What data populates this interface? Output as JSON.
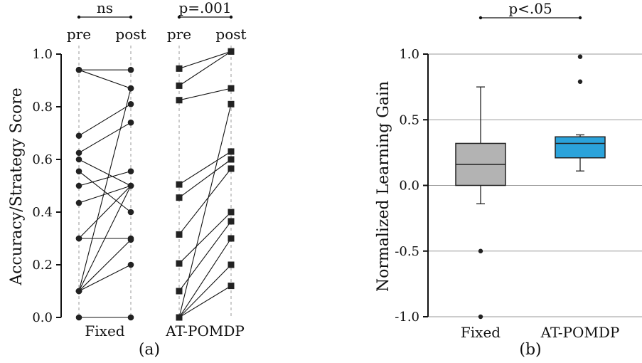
{
  "chart_data": [
    {
      "type": "scatter",
      "panel_label": "(a)",
      "ylabel": "Accuracy/Strategy Score",
      "ylim": [
        0,
        1
      ],
      "yticks": [
        "0.0",
        "0.2",
        "0.4",
        "0.6",
        "0.8",
        "1.0"
      ],
      "x_tick_labels": [
        "pre",
        "post"
      ],
      "groups": [
        {
          "name": "Fixed",
          "significance": "ns",
          "marker": "circle",
          "pairs": [
            [
              0.94,
              0.94
            ],
            [
              0.94,
              0.87
            ],
            [
              0.69,
              0.81
            ],
            [
              0.625,
              0.74
            ],
            [
              0.6,
              0.5
            ],
            [
              0.555,
              0.4
            ],
            [
              0.5,
              0.555
            ],
            [
              0.435,
              0.5
            ],
            [
              0.3,
              0.3
            ],
            [
              0.3,
              0.5
            ],
            [
              0.1,
              0.87
            ],
            [
              0.1,
              0.5
            ],
            [
              0.1,
              0.295
            ],
            [
              0.1,
              0.2
            ],
            [
              0.0,
              0.0
            ]
          ]
        },
        {
          "name": "AT-POMDP",
          "significance": "p=.001",
          "marker": "square",
          "pairs": [
            [
              0.945,
              1.01
            ],
            [
              0.88,
              1.01
            ],
            [
              0.825,
              0.87
            ],
            [
              0.505,
              0.63
            ],
            [
              0.455,
              0.6
            ],
            [
              0.315,
              0.565
            ],
            [
              0.205,
              0.4
            ],
            [
              0.1,
              0.365
            ],
            [
              0.0,
              0.81
            ],
            [
              0.0,
              0.3
            ],
            [
              0.0,
              0.2
            ],
            [
              0.0,
              0.12
            ]
          ]
        }
      ]
    },
    {
      "type": "box",
      "panel_label": "(b)",
      "ylabel": "Normalized Learning Gain",
      "ylim": [
        -1.0,
        1.0
      ],
      "yticks": [
        "-1.0",
        "-0.5",
        "0.0",
        "0.5",
        "1.0"
      ],
      "significance": "p<.05",
      "grid": true,
      "categories": [
        "Fixed",
        "AT-POMDP"
      ],
      "boxes": [
        {
          "name": "Fixed",
          "whisker_low": -0.14,
          "q1": 0.0,
          "median": 0.16,
          "q3": 0.32,
          "whisker_high": 0.75,
          "outliers": [
            -0.5,
            -1.0
          ],
          "color": "#b3b3b3"
        },
        {
          "name": "AT-POMDP",
          "whisker_low": 0.11,
          "q1": 0.21,
          "median": 0.32,
          "q3": 0.37,
          "whisker_high": 0.385,
          "outliers": [
            0.79,
            0.98
          ],
          "color": "#2ba3db"
        }
      ]
    }
  ]
}
